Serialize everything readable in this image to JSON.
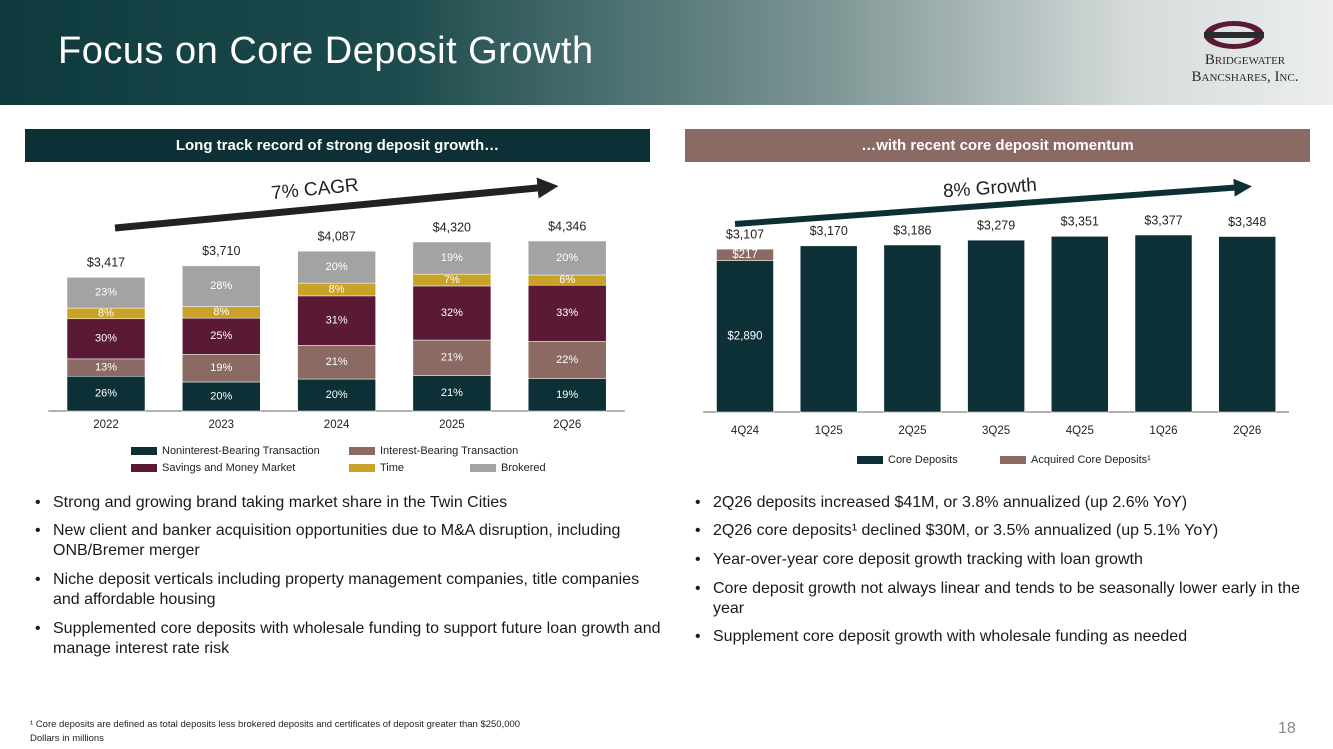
{
  "header": {
    "title": "Focus on Core Deposit Growth",
    "logo": [
      "Bridgewater",
      "Bancshares, Inc."
    ]
  },
  "left": {
    "heading": "Long track record of strong deposit growth…",
    "bullets": [
      "Strong and growing brand taking market share in the Twin Cities",
      "New client and banker acquisition opportunities due to M&A disruption, including ONB/Bremer merger",
      "Niche deposit verticals including property management companies, title companies and affordable housing",
      "Supplemented core deposits with wholesale funding to support future loan growth and manage interest rate risk"
    ]
  },
  "right": {
    "heading": "…with recent core deposit momentum",
    "bullets": [
      "2Q26 deposits increased $41M, or 3.8% annualized (up 2.6% YoY)",
      "2Q26 core deposits¹ declined $30M, or 3.5% annualized (up 5.1% YoY)",
      "Year-over-year core deposit growth tracking with loan growth",
      "Core deposit growth not always linear and tends to be seasonally lower early in the year",
      "Supplement core deposit growth with wholesale funding as needed"
    ]
  },
  "footnotes": [
    "¹ Core deposits are defined as total deposits less brokered deposits and certificates of deposit greater than $250,000",
    "Dollars in millions"
  ],
  "page_number": "18",
  "chart_data": [
    {
      "type": "stacked_percent_bar",
      "annotation": "7% CAGR",
      "categories": [
        "2022",
        "2023",
        "2024",
        "2025",
        "2Q26"
      ],
      "series": [
        {
          "name": "Noninterest-Bearing Transaction",
          "color": "#0d3036",
          "values": [
            26,
            20,
            20,
            21,
            19
          ],
          "value_labels": [
            "26%",
            "20%",
            "20%",
            "21%",
            "19%"
          ]
        },
        {
          "name": "Interest-Bearing Transaction",
          "color": "#8b6a63",
          "values": [
            13,
            19,
            21,
            21,
            22
          ],
          "value_labels": [
            "13%",
            "19%",
            "21%",
            "21%",
            "22%"
          ]
        },
        {
          "name": "Savings and Money Market",
          "color": "#5a1a36",
          "values": [
            30,
            25,
            31,
            32,
            33
          ],
          "value_labels": [
            "30%",
            "25%",
            "31%",
            "32%",
            "33%"
          ]
        },
        {
          "name": "Time",
          "color": "#c9a228",
          "values": [
            8,
            8,
            8,
            7,
            6
          ],
          "value_labels": [
            "8%",
            "8%",
            "8%",
            "7%",
            "6%"
          ]
        },
        {
          "name": "Brokered",
          "color": "#a3a3a3",
          "values": [
            23,
            28,
            20,
            19,
            20
          ],
          "value_labels": [
            "23%",
            "28%",
            "20%",
            "19%",
            "20%"
          ]
        }
      ],
      "totals": {
        "values": [
          3417,
          3710,
          4087,
          4320,
          4346
        ],
        "value_labels": [
          "$3,417",
          "$3,710",
          "$4,087",
          "$4,320",
          "$4,346"
        ]
      }
    },
    {
      "type": "stacked_bar",
      "annotation": "8% Growth",
      "categories": [
        "4Q24",
        "1Q25",
        "2Q25",
        "3Q25",
        "4Q25",
        "1Q26",
        "2Q26"
      ],
      "series": [
        {
          "name": "Core Deposits",
          "color": "#0d3036",
          "values": [
            2890,
            3170,
            3186,
            3279,
            3351,
            3377,
            3348
          ],
          "value_labels": [
            "$2,890",
            null,
            null,
            null,
            null,
            null,
            null
          ]
        },
        {
          "name": "Acquired Core Deposits¹",
          "color": "#8b6a63",
          "values": [
            217,
            null,
            null,
            null,
            null,
            null,
            null
          ],
          "value_labels": [
            "$217",
            null,
            null,
            null,
            null,
            null,
            null
          ]
        }
      ],
      "totals": {
        "values": [
          3107,
          3170,
          3186,
          3279,
          3351,
          3377,
          3348
        ],
        "value_labels": [
          "$3,107",
          "$3,170",
          "$3,186",
          "$3,279",
          "$3,351",
          "$3,377",
          "$3,348"
        ]
      }
    }
  ]
}
